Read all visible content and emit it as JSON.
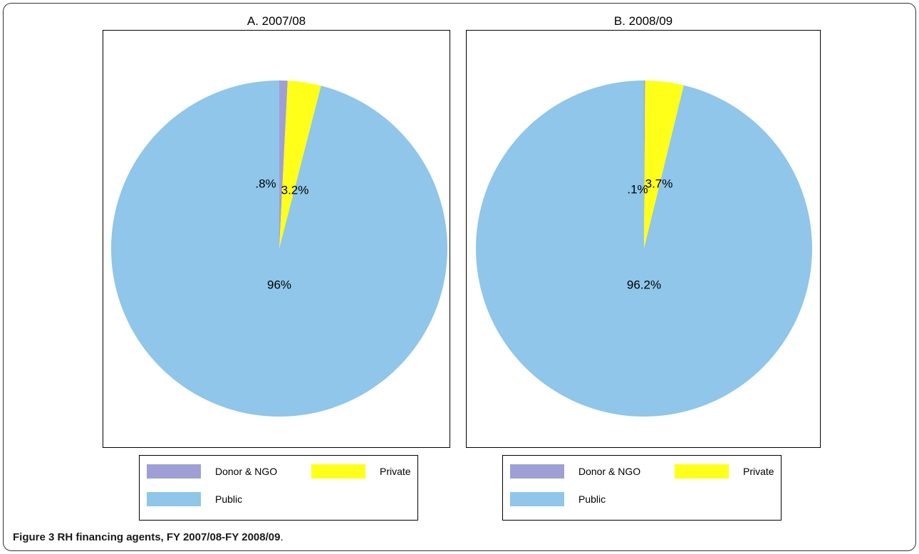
{
  "chart_data": [
    {
      "type": "pie",
      "title": "A. 2007/08",
      "slices": [
        {
          "name": "Donor & NGO",
          "value": 0.8,
          "label": ".8%",
          "color": "#9f9fd6"
        },
        {
          "name": "Private",
          "value": 3.2,
          "label": "3.2%",
          "color": "#ffff1a"
        },
        {
          "name": "Public",
          "value": 96,
          "label": "96%",
          "color": "#8fc6ea"
        }
      ],
      "legend": {
        "placement": "bottom"
      }
    },
    {
      "type": "pie",
      "title": "B. 2008/09",
      "slices": [
        {
          "name": "Donor & NGO",
          "value": 0.1,
          "label": ".1%",
          "color": "#9f9fd6"
        },
        {
          "name": "Private",
          "value": 3.7,
          "label": "3.7%",
          "color": "#ffff1a"
        },
        {
          "name": "Public",
          "value": 96.2,
          "label": "96.2%",
          "color": "#8fc6ea"
        }
      ],
      "legend": {
        "placement": "bottom"
      }
    }
  ],
  "legend_items": [
    {
      "label": "Donor & NGO",
      "color": "#9f9fd6"
    },
    {
      "label": "Private",
      "color": "#ffff1a"
    },
    {
      "label": "Public",
      "color": "#8fc6ea"
    }
  ],
  "caption": {
    "figure_label": "Figure 3",
    "text": "RH financing agents, FY 2007/08-FY 2008/09",
    "end": "."
  }
}
